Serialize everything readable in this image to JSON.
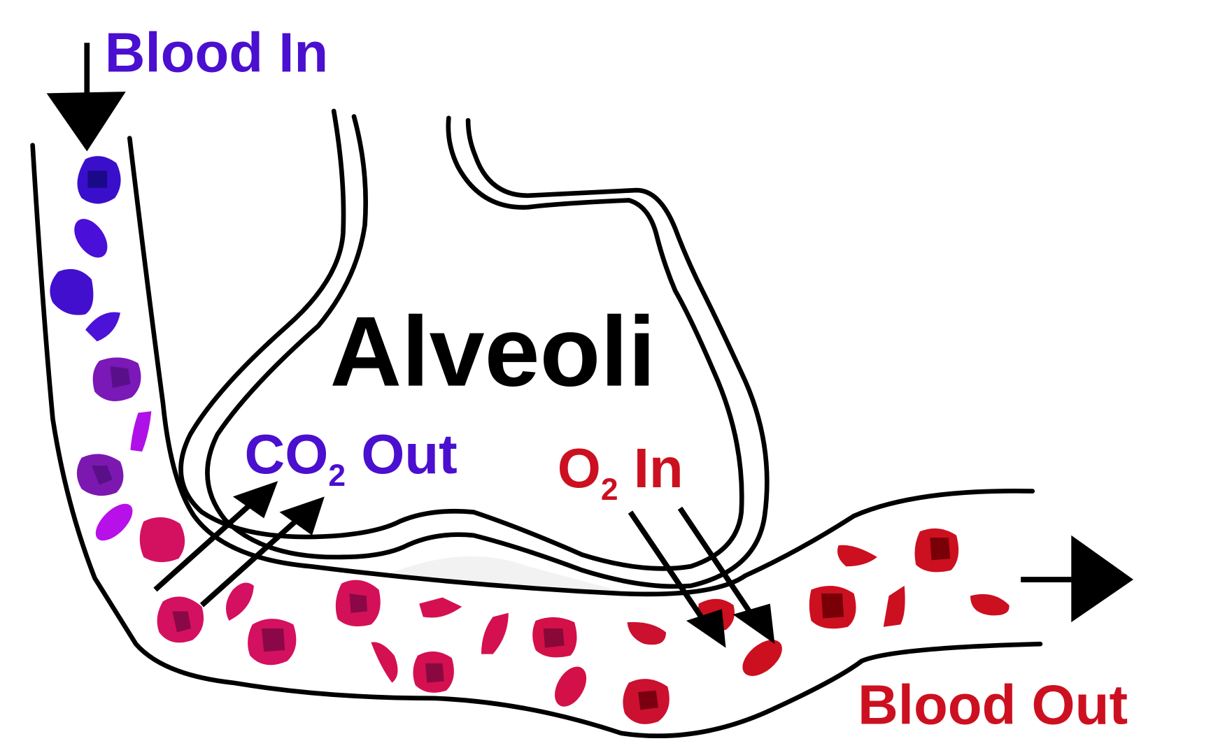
{
  "labels": {
    "blood_in": "Blood In",
    "alveoli": "Alveoli",
    "co2_out": {
      "main": "CO",
      "sub": "2",
      "rest": " Out"
    },
    "o2_in": {
      "main": "O",
      "sub": "2",
      "rest": " In"
    },
    "blood_out": "Blood Out"
  }
}
